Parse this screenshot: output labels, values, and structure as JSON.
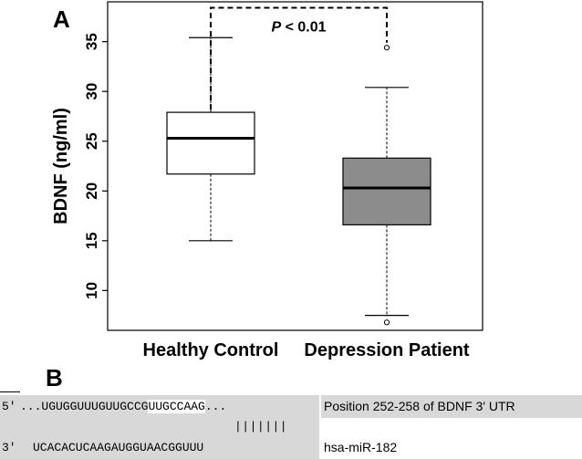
{
  "panel_a_label": "A",
  "panel_b_label": "B",
  "chart_data": {
    "type": "box",
    "ylabel": "BDNF (ng/ml)",
    "ylim": [
      6,
      39
    ],
    "yticks": [
      10,
      15,
      20,
      25,
      30,
      35
    ],
    "grid": false,
    "categories": [
      "Healthy Control",
      "Depression Patient"
    ],
    "series": [
      {
        "category": "Healthy Control",
        "min": 15.0,
        "q1": 21.7,
        "median": 25.3,
        "q3": 27.9,
        "max": 35.4,
        "outliers": [],
        "fill": "#ffffff"
      },
      {
        "category": "Depression Patient",
        "min": 7.5,
        "q1": 16.6,
        "median": 20.3,
        "q3": 23.3,
        "max": 30.4,
        "outliers": [
          34.4,
          6.8
        ],
        "fill": "#8c8c8c"
      }
    ],
    "annotation": {
      "text_italic": "P",
      "text_rest": " < 0.01",
      "bracket_y": 38.4
    }
  },
  "sequence": {
    "row1_prefix": "5'",
    "row1_seq_a": "...UGUGGUUUGUUGCCG",
    "row1_seq_b": "UUGCCAAG",
    "row1_seq_c": "...",
    "row1_label": "Position 252-258 of BDNF 3' UTR",
    "pairing": "|||||||",
    "row2_prefix": "3'",
    "row2_seq": "UCACACUCAAGAUGGUAACGGUUU",
    "row2_label": "hsa-miR-182"
  }
}
